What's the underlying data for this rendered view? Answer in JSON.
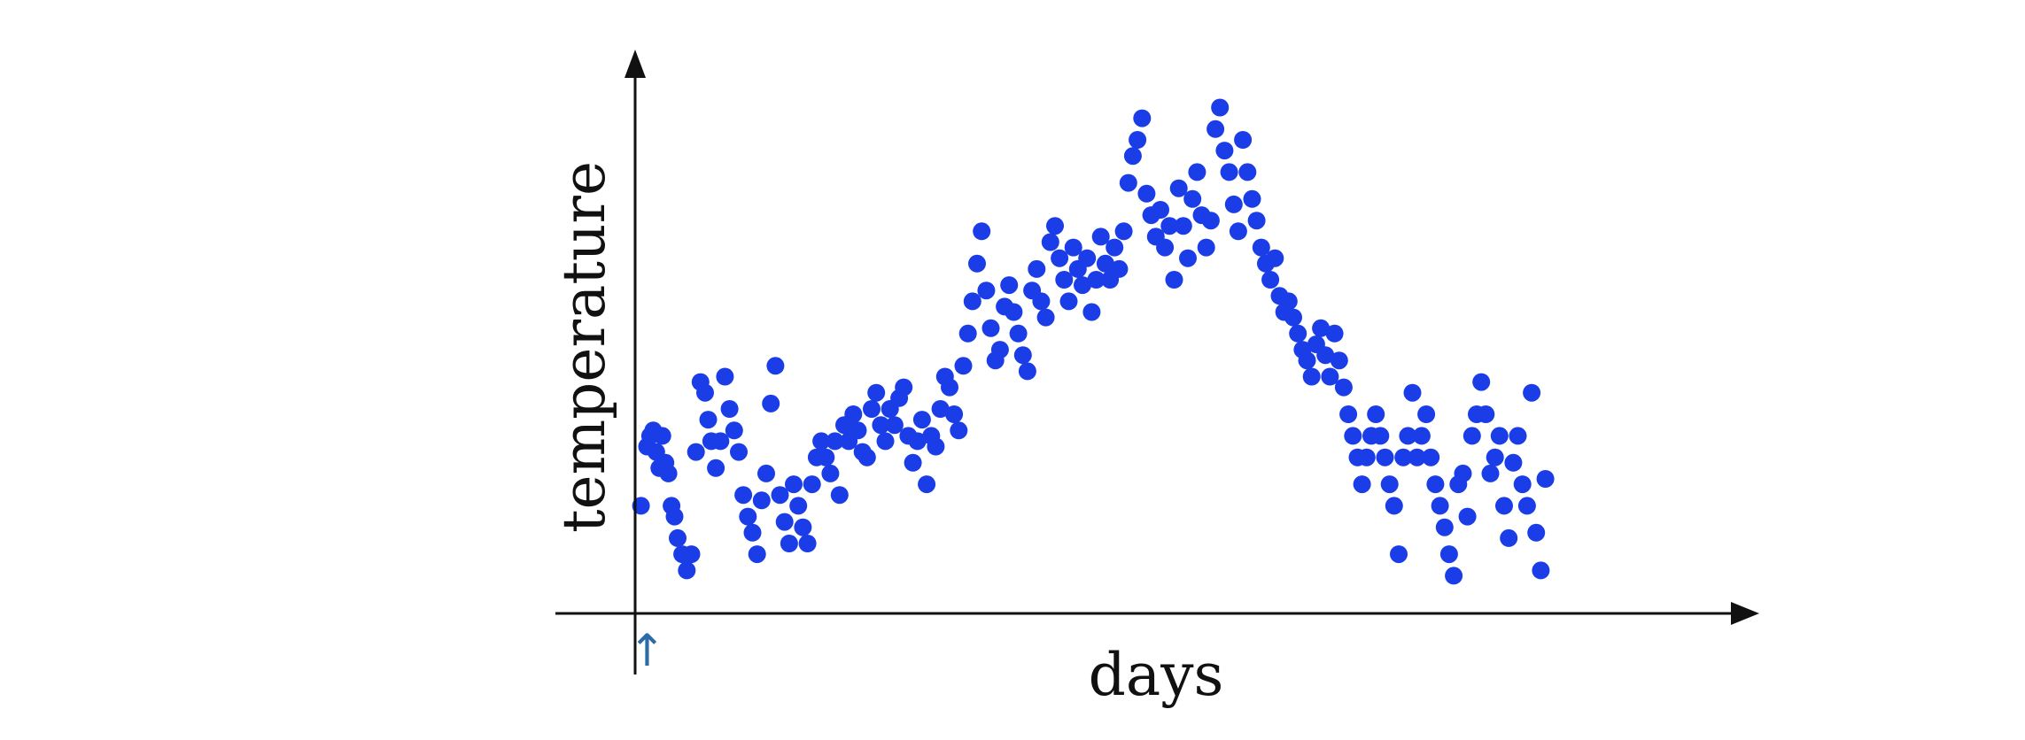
{
  "chart_data": {
    "type": "scatter",
    "xlabel": "days",
    "ylabel": "temperature",
    "grid": false,
    "legend": "none",
    "marker_color": "#1a3de8",
    "axis_color": "#111111",
    "annotation": {
      "symbol": "↑",
      "color": "#2d6aa8",
      "x": 3
    },
    "xlim": [
      -3,
      74
    ],
    "ylim": [
      0,
      100
    ],
    "series": [
      {
        "points": [
          [
            2.6,
            20
          ],
          [
            3.0,
            31
          ],
          [
            3.2,
            33
          ],
          [
            3.4,
            34
          ],
          [
            3.6,
            30
          ],
          [
            3.8,
            27
          ],
          [
            4.0,
            33
          ],
          [
            4.2,
            28
          ],
          [
            4.4,
            26
          ],
          [
            4.6,
            20
          ],
          [
            4.8,
            18
          ],
          [
            5.0,
            14
          ],
          [
            5.3,
            11
          ],
          [
            5.6,
            8
          ],
          [
            5.9,
            11
          ],
          [
            6.2,
            30
          ],
          [
            6.5,
            43
          ],
          [
            6.8,
            41
          ],
          [
            7.0,
            36
          ],
          [
            7.2,
            32
          ],
          [
            7.5,
            27
          ],
          [
            7.8,
            32
          ],
          [
            8.1,
            44
          ],
          [
            8.4,
            38
          ],
          [
            8.7,
            34
          ],
          [
            9.0,
            30
          ],
          [
            9.3,
            22
          ],
          [
            9.6,
            18
          ],
          [
            9.9,
            15
          ],
          [
            10.2,
            11
          ],
          [
            10.5,
            21
          ],
          [
            10.8,
            26
          ],
          [
            11.1,
            39
          ],
          [
            11.4,
            46
          ],
          [
            11.7,
            22
          ],
          [
            12.0,
            17
          ],
          [
            12.3,
            13
          ],
          [
            12.6,
            24
          ],
          [
            12.9,
            20
          ],
          [
            13.2,
            16
          ],
          [
            13.5,
            13
          ],
          [
            13.8,
            24
          ],
          [
            14.1,
            29
          ],
          [
            14.4,
            32
          ],
          [
            14.7,
            29
          ],
          [
            15.0,
            26
          ],
          [
            15.3,
            32
          ],
          [
            15.6,
            22
          ],
          [
            15.9,
            35
          ],
          [
            16.2,
            32
          ],
          [
            16.5,
            37
          ],
          [
            16.8,
            34
          ],
          [
            17.1,
            30
          ],
          [
            17.4,
            29
          ],
          [
            17.7,
            38
          ],
          [
            18.0,
            41
          ],
          [
            18.3,
            35
          ],
          [
            18.6,
            32
          ],
          [
            18.9,
            38
          ],
          [
            19.2,
            35
          ],
          [
            19.5,
            40
          ],
          [
            19.8,
            42
          ],
          [
            20.1,
            33
          ],
          [
            20.4,
            28
          ],
          [
            20.7,
            32
          ],
          [
            21.0,
            36
          ],
          [
            21.3,
            24
          ],
          [
            21.6,
            33
          ],
          [
            21.9,
            31
          ],
          [
            22.2,
            38
          ],
          [
            22.5,
            44
          ],
          [
            22.8,
            42
          ],
          [
            23.1,
            37
          ],
          [
            23.4,
            34
          ],
          [
            23.7,
            46
          ],
          [
            24.0,
            52
          ],
          [
            24.3,
            58
          ],
          [
            24.6,
            65
          ],
          [
            24.9,
            71
          ],
          [
            25.2,
            60
          ],
          [
            25.5,
            53
          ],
          [
            25.8,
            47
          ],
          [
            26.1,
            49
          ],
          [
            26.4,
            57
          ],
          [
            26.7,
            61
          ],
          [
            27.0,
            56
          ],
          [
            27.3,
            52
          ],
          [
            27.6,
            48
          ],
          [
            27.9,
            45
          ],
          [
            28.2,
            60
          ],
          [
            28.5,
            64
          ],
          [
            28.8,
            58
          ],
          [
            29.1,
            55
          ],
          [
            29.4,
            69
          ],
          [
            29.7,
            72
          ],
          [
            30.0,
            66
          ],
          [
            30.3,
            62
          ],
          [
            30.6,
            58
          ],
          [
            30.9,
            68
          ],
          [
            31.2,
            64
          ],
          [
            31.5,
            61
          ],
          [
            31.8,
            66
          ],
          [
            32.1,
            56
          ],
          [
            32.4,
            62
          ],
          [
            32.7,
            70
          ],
          [
            33.0,
            65
          ],
          [
            33.3,
            62
          ],
          [
            33.6,
            68
          ],
          [
            33.9,
            64
          ],
          [
            34.2,
            71
          ],
          [
            34.5,
            80
          ],
          [
            34.8,
            85
          ],
          [
            35.1,
            88
          ],
          [
            35.4,
            92
          ],
          [
            35.7,
            78
          ],
          [
            36.0,
            74
          ],
          [
            36.3,
            70
          ],
          [
            36.6,
            75
          ],
          [
            36.9,
            68
          ],
          [
            37.2,
            72
          ],
          [
            37.5,
            62
          ],
          [
            37.8,
            79
          ],
          [
            38.1,
            72
          ],
          [
            38.4,
            66
          ],
          [
            38.7,
            77
          ],
          [
            39.0,
            82
          ],
          [
            39.3,
            74
          ],
          [
            39.6,
            68
          ],
          [
            39.9,
            73
          ],
          [
            40.2,
            90
          ],
          [
            40.5,
            94
          ],
          [
            40.8,
            86
          ],
          [
            41.1,
            82
          ],
          [
            41.4,
            76
          ],
          [
            41.7,
            71
          ],
          [
            42.0,
            88
          ],
          [
            42.3,
            82
          ],
          [
            42.6,
            77
          ],
          [
            42.9,
            73
          ],
          [
            43.2,
            68
          ],
          [
            43.5,
            65
          ],
          [
            43.8,
            62
          ],
          [
            44.1,
            66
          ],
          [
            44.4,
            59
          ],
          [
            44.7,
            56
          ],
          [
            45.0,
            58
          ],
          [
            45.3,
            55
          ],
          [
            45.6,
            52
          ],
          [
            45.9,
            49
          ],
          [
            46.2,
            47
          ],
          [
            46.5,
            44
          ],
          [
            46.8,
            50
          ],
          [
            47.1,
            53
          ],
          [
            47.4,
            48
          ],
          [
            47.7,
            44
          ],
          [
            48.0,
            52
          ],
          [
            48.3,
            47
          ],
          [
            48.6,
            42
          ],
          [
            48.9,
            37
          ],
          [
            49.2,
            33
          ],
          [
            49.5,
            29
          ],
          [
            49.8,
            24
          ],
          [
            50.1,
            29
          ],
          [
            50.4,
            33
          ],
          [
            50.7,
            37
          ],
          [
            51.0,
            33
          ],
          [
            51.3,
            29
          ],
          [
            51.6,
            24
          ],
          [
            51.9,
            20
          ],
          [
            52.2,
            11
          ],
          [
            52.5,
            29
          ],
          [
            52.8,
            33
          ],
          [
            53.1,
            41
          ],
          [
            53.4,
            29
          ],
          [
            53.7,
            33
          ],
          [
            54.0,
            37
          ],
          [
            54.3,
            29
          ],
          [
            54.6,
            24
          ],
          [
            54.9,
            20
          ],
          [
            55.2,
            16
          ],
          [
            55.5,
            11
          ],
          [
            55.8,
            7
          ],
          [
            56.1,
            24
          ],
          [
            56.4,
            26
          ],
          [
            56.7,
            18
          ],
          [
            57.0,
            33
          ],
          [
            57.3,
            37
          ],
          [
            57.6,
            43
          ],
          [
            57.9,
            37
          ],
          [
            58.2,
            26
          ],
          [
            58.5,
            29
          ],
          [
            58.8,
            33
          ],
          [
            59.1,
            20
          ],
          [
            59.4,
            14
          ],
          [
            59.7,
            28
          ],
          [
            60.0,
            33
          ],
          [
            60.3,
            24
          ],
          [
            60.6,
            20
          ],
          [
            60.9,
            41
          ],
          [
            61.2,
            15
          ],
          [
            61.5,
            8
          ],
          [
            61.8,
            25
          ]
        ]
      }
    ]
  }
}
